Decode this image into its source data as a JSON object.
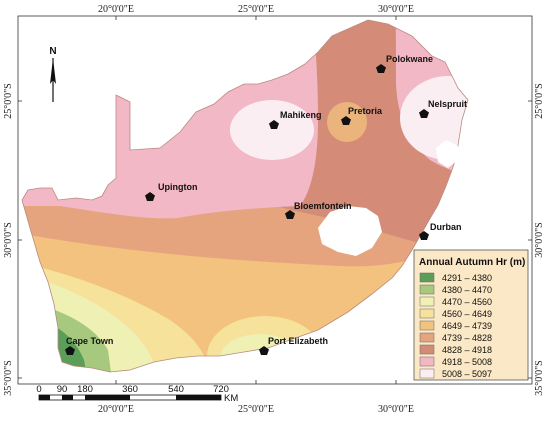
{
  "map": {
    "top_labels": [
      "20°0'0\"E",
      "25°0'0\"E",
      "30°0'0\"E"
    ],
    "bottom_labels": [
      "20°0'0\"E",
      "25°0'0\"E",
      "30°0'0\"E"
    ],
    "left_labels": [
      "25°0'0\"S",
      "30°0'0\"S",
      "35°0'0\"S"
    ],
    "right_labels": [
      "25°0'0\"S",
      "30°0'0\"S",
      "35°0'0\"S"
    ],
    "north_label": "N",
    "cities": [
      "Polokwane",
      "Pretoria",
      "Nelspruit",
      "Mahikeng",
      "Upington",
      "Bloemfontein",
      "Durban",
      "Cape Town",
      "Port Elizabeth"
    ],
    "scale": {
      "ticks": [
        "0",
        "90",
        "180",
        "360",
        "540",
        "720"
      ],
      "unit": "KM"
    }
  },
  "legend": {
    "title": "Annual Autumn Hr (m)",
    "classes": [
      {
        "range": "4291 – 4380",
        "color": "#5a9e58"
      },
      {
        "range": "4380 – 4470",
        "color": "#a6c97e"
      },
      {
        "range": "4470 – 4560",
        "color": "#eef0b4"
      },
      {
        "range": "4560 – 4649",
        "color": "#f6e29a"
      },
      {
        "range": "4649 – 4739",
        "color": "#f2c27e"
      },
      {
        "range": "4739 – 4828",
        "color": "#e5a47e"
      },
      {
        "range": "4828 – 4918",
        "color": "#d48c78"
      },
      {
        "range": "4918 – 5008",
        "color": "#f2b8c6"
      },
      {
        "range": "5008 – 5097",
        "color": "#fbeef3"
      }
    ]
  }
}
